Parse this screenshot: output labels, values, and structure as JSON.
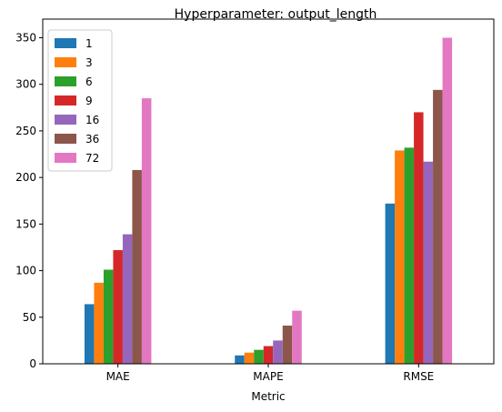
{
  "chart_data": {
    "type": "bar",
    "title": "Hyperparameter: output_length",
    "xlabel": "Metric",
    "ylabel": "",
    "categories": [
      "MAE",
      "MAPE",
      "RMSE"
    ],
    "ylim": [
      0,
      370
    ],
    "yticks": [
      0,
      50,
      100,
      150,
      200,
      250,
      300,
      350
    ],
    "grid": false,
    "legend_position": "top-left",
    "series": [
      {
        "name": "1",
        "color": "#1f77b4",
        "values": [
          64,
          9,
          172
        ]
      },
      {
        "name": "3",
        "color": "#ff7f0e",
        "values": [
          87,
          12,
          229
        ]
      },
      {
        "name": "6",
        "color": "#2ca02c",
        "values": [
          101,
          15,
          232
        ]
      },
      {
        "name": "9",
        "color": "#d62728",
        "values": [
          122,
          19,
          270
        ]
      },
      {
        "name": "16",
        "color": "#9467bd",
        "values": [
          139,
          25,
          217
        ]
      },
      {
        "name": "36",
        "color": "#8c564b",
        "values": [
          208,
          41,
          294
        ]
      },
      {
        "name": "72",
        "color": "#e377c2",
        "values": [
          285,
          57,
          350
        ]
      }
    ]
  }
}
